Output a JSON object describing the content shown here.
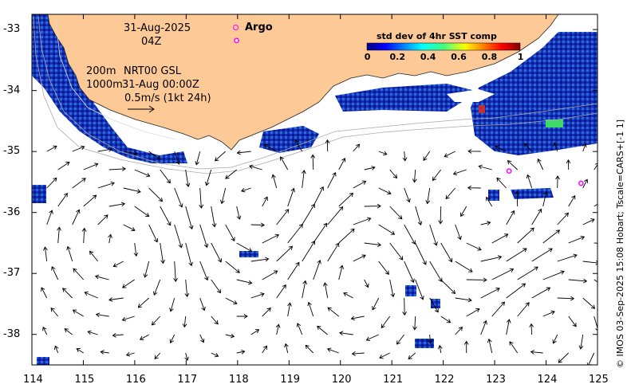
{
  "header": {
    "date": "31-Aug-2025",
    "hour": "04Z",
    "depth_line1": "200m",
    "product": "NRT00 GSL",
    "depth_line2": "1000m",
    "product_time": "31-Aug 00:00Z",
    "scale_text": "0.5m/s (1kt 24h)"
  },
  "legend": {
    "argo_label": "Argo",
    "argo_color": "#ff00ff"
  },
  "colorbar": {
    "title": "std dev of 4hr SST comp",
    "ticks": [
      "0",
      "0.2",
      "0.4",
      "0.6",
      "0.8",
      "1"
    ]
  },
  "axes": {
    "x_ticks": [
      "114",
      "115",
      "116",
      "117",
      "118",
      "119",
      "120",
      "121",
      "122",
      "123",
      "124",
      "125"
    ],
    "y_ticks": [
      "-33",
      "-34",
      "-35",
      "-36",
      "-37",
      "-38"
    ]
  },
  "credit": "© IMOS 03-Sep-2025 15:08 Hobart; Tscale=CARS+[-1 1]",
  "colors": {
    "land": "#fdc996",
    "ocean": "#ffffff"
  },
  "argo_floats": [
    {
      "lon": 117.98,
      "lat": -33.18
    },
    {
      "lon": 123.28,
      "lat": -35.32
    },
    {
      "lon": 124.68,
      "lat": -35.52
    }
  ]
}
